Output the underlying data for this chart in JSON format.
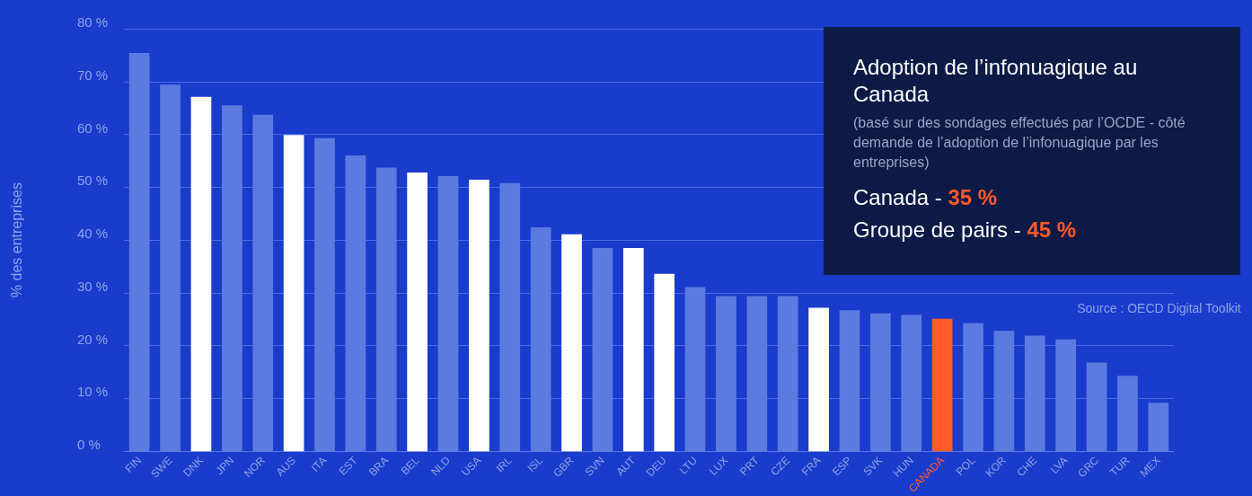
{
  "chart_data": {
    "type": "bar",
    "title": "Adoption de l’infonuagique au Canada",
    "subtitle": "(basé sur des sondages effectués par l’OCDE - côté demande de l’adoption de l’infonuagique par les entreprises)",
    "ylabel": "% des entreprises",
    "categories": [
      "FIN",
      "SWE",
      "DNK",
      "JPN",
      "NOR",
      "AUS",
      "ITA",
      "EST",
      "BRA",
      "BEL",
      "NLD",
      "USA",
      "IRL",
      "ISL",
      "GBR",
      "SVN",
      "AUT",
      "DEU",
      "LTU",
      "LUX",
      "PRT",
      "CZE",
      "FRA",
      "ESP",
      "SVK",
      "HUN",
      "CANADA",
      "POL",
      "KOR",
      "CHE",
      "LVA",
      "GRC",
      "TUR",
      "MEX"
    ],
    "values": [
      75.4,
      69.4,
      67.1,
      65.5,
      63.7,
      59.9,
      59.3,
      56.0,
      53.7,
      52.8,
      52.1,
      51.4,
      50.8,
      42.4,
      41.1,
      38.5,
      38.5,
      33.6,
      31.1,
      29.4,
      29.4,
      29.4,
      27.2,
      26.7,
      26.1,
      25.8,
      25.1,
      24.3,
      22.8,
      21.9,
      21.2,
      16.8,
      14.3,
      9.2
    ],
    "colors": [
      "#5b7be0",
      "#5b7be0",
      "#ffffff",
      "#5b7be0",
      "#5b7be0",
      "#ffffff",
      "#5b7be0",
      "#5b7be0",
      "#5b7be0",
      "#ffffff",
      "#5b7be0",
      "#ffffff",
      "#5b7be0",
      "#5b7be0",
      "#ffffff",
      "#5b7be0",
      "#ffffff",
      "#ffffff",
      "#5b7be0",
      "#5b7be0",
      "#5b7be0",
      "#5b7be0",
      "#ffffff",
      "#5b7be0",
      "#5b7be0",
      "#5b7be0",
      "#ff5a2a",
      "#5b7be0",
      "#5b7be0",
      "#5b7be0",
      "#5b7be0",
      "#5b7be0",
      "#5b7be0",
      "#5b7be0"
    ],
    "ylim": [
      0,
      80
    ],
    "yticks": [
      {
        "value": 0,
        "label": "0 %"
      },
      {
        "value": 10,
        "label": "10 %"
      },
      {
        "value": 20,
        "label": "20 %"
      },
      {
        "value": 30,
        "label": "30 %"
      },
      {
        "value": 40,
        "label": "40 %"
      },
      {
        "value": 50,
        "label": "50 %"
      },
      {
        "value": 60,
        "label": "60 %"
      },
      {
        "value": 70,
        "label": "70 %"
      },
      {
        "value": 80,
        "label": "80 %"
      }
    ],
    "grid": "y",
    "annotations": [
      "Canada - 35 %",
      "Groupe de pairs - 45 %",
      "Source : OECD Digital Toolkit"
    ]
  }
}
